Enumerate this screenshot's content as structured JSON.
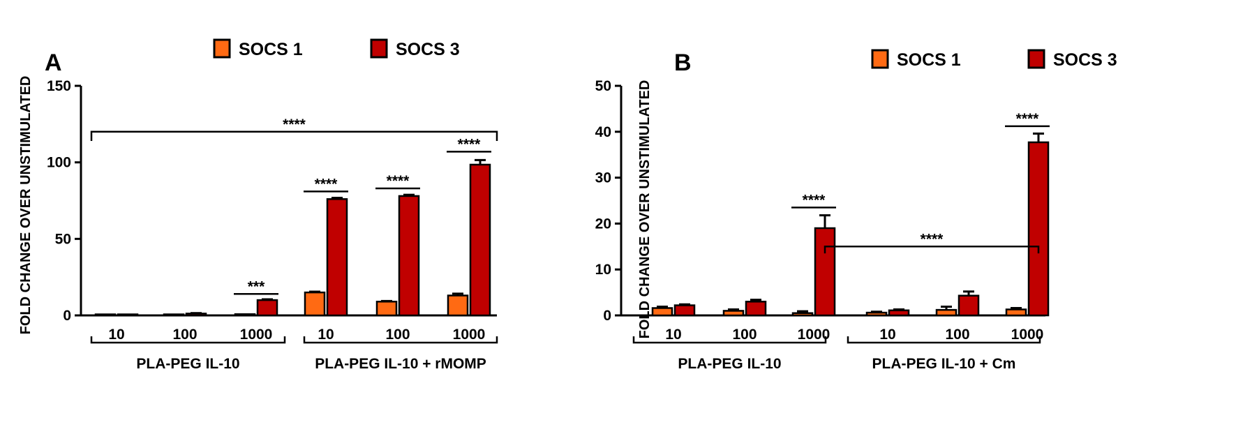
{
  "colors": {
    "socs1": "#ff6a13",
    "socs3": "#c00000",
    "line": "#000000"
  },
  "chart_data": [
    {
      "panel": "A",
      "type": "bar",
      "legend": [
        "SOCS 1",
        "SOCS 3"
      ],
      "ylabel": "FOLD CHANGE OVER UNSTIMULATED",
      "ylim": [
        0,
        150
      ],
      "yticks": [
        0,
        50,
        100,
        150
      ],
      "categories": [
        "10",
        "100",
        "1000",
        "10",
        "100",
        "1000"
      ],
      "groups": [
        {
          "label": "PLA-PEG IL-10",
          "category_indices": [
            0,
            1,
            2
          ]
        },
        {
          "label": "PLA-PEG IL-10 + rMOMP",
          "category_indices": [
            3,
            4,
            5
          ]
        }
      ],
      "series": [
        {
          "name": "SOCS 1",
          "values": [
            0.3,
            0.3,
            0.8,
            15,
            9,
            13
          ],
          "errors": [
            0,
            0,
            0,
            0.5,
            0.4,
            1.2
          ]
        },
        {
          "name": "SOCS 3",
          "values": [
            0.3,
            1.2,
            10,
            76,
            78,
            98.5
          ],
          "errors": [
            0,
            0.3,
            0.5,
            0.8,
            0.8,
            3
          ]
        }
      ],
      "significance": [
        {
          "label": "***",
          "from_category": 2,
          "to_category": 2,
          "level": 14
        },
        {
          "label": "****",
          "from_category": 3,
          "to_category": 3,
          "level": 81
        },
        {
          "label": "****",
          "from_category": 4,
          "to_category": 4,
          "level": 83
        },
        {
          "label": "****",
          "from_category": 5,
          "to_category": 5,
          "level": 107
        },
        {
          "label": "****",
          "from_category": 0,
          "to_category": 5,
          "level": 120,
          "drop": 6
        }
      ]
    },
    {
      "panel": "B",
      "type": "bar",
      "legend": [
        "SOCS 1",
        "SOCS 3"
      ],
      "ylabel": "FOLD CHANGE OVER UNSTIMULATED",
      "ylim": [
        0,
        50
      ],
      "yticks": [
        0,
        10,
        20,
        30,
        40,
        50
      ],
      "categories": [
        "10",
        "100",
        "1000",
        "10",
        "100",
        "1000"
      ],
      "groups": [
        {
          "label": "PLA-PEG IL-10",
          "category_indices": [
            0,
            1,
            2
          ]
        },
        {
          "label": "PLA-PEG IL-10 + Cm",
          "category_indices": [
            3,
            4,
            5
          ]
        }
      ],
      "series": [
        {
          "name": "SOCS 1",
          "values": [
            1.6,
            1,
            0.5,
            0.6,
            1.2,
            1.3
          ],
          "errors": [
            0.3,
            0.3,
            0.4,
            0.2,
            0.7,
            0.3
          ]
        },
        {
          "name": "SOCS 3",
          "values": [
            2.2,
            3,
            19,
            1.1,
            4.3,
            37.7
          ],
          "errors": [
            0.2,
            0.4,
            2.8,
            0.2,
            0.9,
            1.9
          ]
        }
      ],
      "significance": [
        {
          "label": "****",
          "from_category": 2,
          "to_category": 2,
          "level": 23.5
        },
        {
          "label": "****",
          "from_category": 5,
          "to_category": 5,
          "level": 41.2
        },
        {
          "label": "****",
          "from_category": 2,
          "to_category": 5,
          "level": 15,
          "drop": 1.5,
          "series": 1
        }
      ]
    }
  ]
}
